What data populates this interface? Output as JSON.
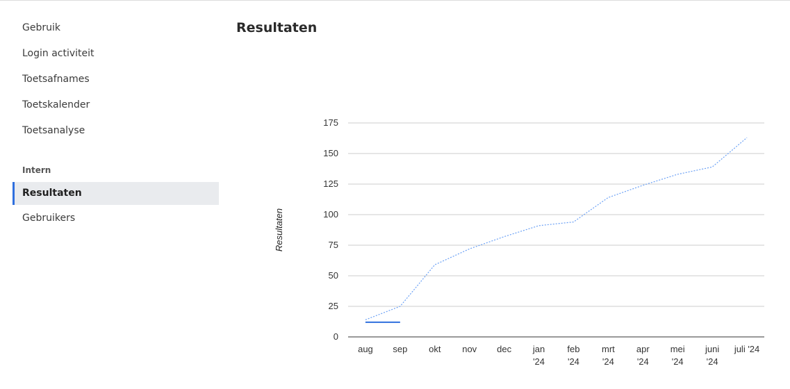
{
  "sidebar": {
    "items": [
      {
        "label": "Gebruik",
        "icon": ""
      },
      {
        "label": "Login activiteit"
      },
      {
        "label": "Toetsafnames"
      },
      {
        "label": "Toetskalender"
      },
      {
        "label": "Toetsanalyse"
      }
    ],
    "section_label": "Intern",
    "intern_items": [
      {
        "label": "Resultaten",
        "active": true
      },
      {
        "label": "Gebruikers",
        "active": false
      }
    ]
  },
  "page": {
    "title": "Resultaten"
  },
  "colors": {
    "accent": "#2f6fde",
    "line": "#6aa0f5",
    "grid": "#cccccc"
  },
  "chart_data": {
    "type": "line",
    "ylabel": "Resultaten",
    "ylim": [
      0,
      175
    ],
    "yticks": [
      0,
      25,
      50,
      75,
      100,
      125,
      150,
      175
    ],
    "categories": [
      [
        "aug"
      ],
      [
        "sep"
      ],
      [
        "okt"
      ],
      [
        "nov"
      ],
      [
        "dec"
      ],
      [
        "jan",
        "'24"
      ],
      [
        "feb",
        "'24"
      ],
      [
        "mrt",
        "'24"
      ],
      [
        "apr",
        "'24"
      ],
      [
        "mei",
        "'24"
      ],
      [
        "juni",
        "'24"
      ],
      [
        "juli '24"
      ]
    ],
    "series": [
      {
        "style": "dotted",
        "values": [
          14,
          25,
          59,
          72,
          82,
          91,
          94,
          114,
          124,
          133,
          139,
          163
        ]
      },
      {
        "style": "solid",
        "values": [
          12,
          12,
          null,
          null,
          null,
          null,
          null,
          null,
          null,
          null,
          null,
          null
        ]
      }
    ],
    "grid": true,
    "legend": "none"
  }
}
